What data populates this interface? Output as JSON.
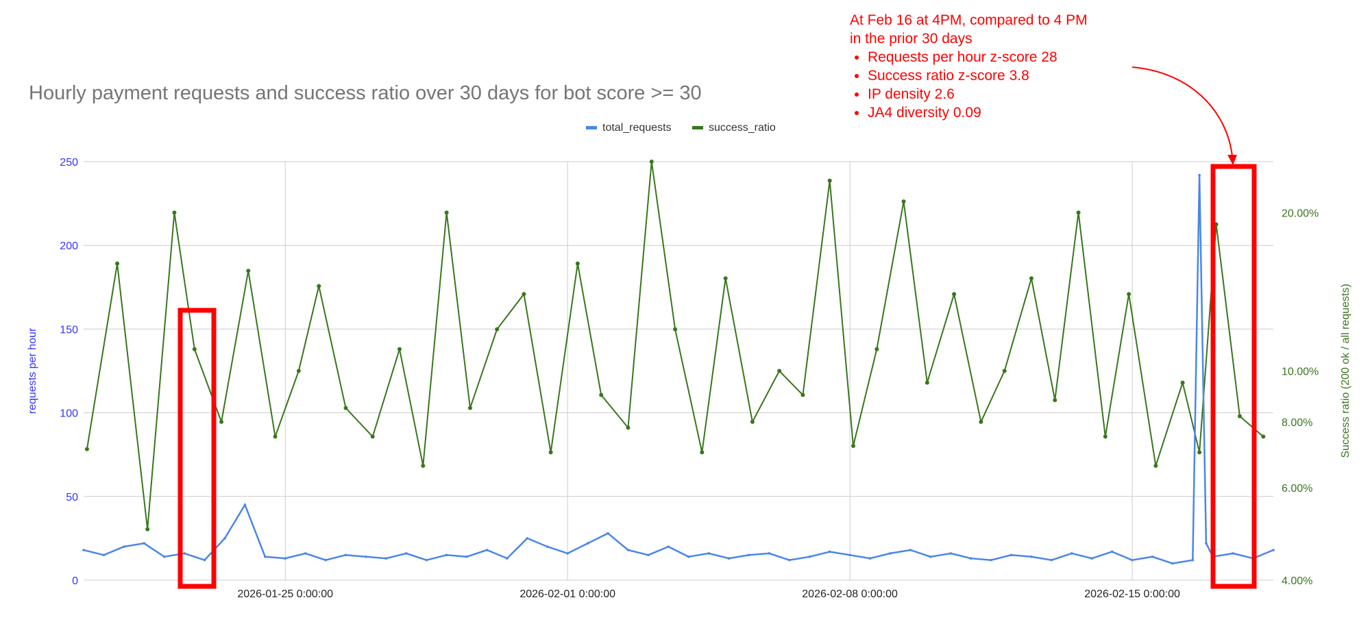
{
  "title": "Hourly payment requests and success ratio over 30 days for bot score >= 30",
  "annotation": {
    "heading": "At Feb 16 at 4PM, compared to 4 PM",
    "subheading": "in the prior 30 days",
    "bullets": [
      "Requests per hour z-score 28",
      "Success ratio z-score 3.8",
      "IP density 2.6",
      "JA4 diversity 0.09"
    ]
  },
  "colors": {
    "requests": "#4a86e8",
    "success": "#38761d",
    "highlight": "#ff0000",
    "left_axis_text": "#3333ff",
    "right_axis_text": "#38761d",
    "grid": "#cccccc"
  },
  "chart_data": {
    "type": "line",
    "x_label_ticks": [
      "2026-01-25 0:00:00",
      "2026-02-01 0:00:00",
      "2026-02-08 0:00:00",
      "2026-02-15 0:00:00"
    ],
    "x_start": "2026-01-20 0:00:00",
    "x_end": "2026-02-18 12:00:00",
    "left_axis": {
      "label": "requests per hour",
      "ylim": [
        0,
        250
      ],
      "ticks": [
        0,
        50,
        100,
        150,
        200,
        250
      ]
    },
    "right_axis": {
      "label": "Success ratio (200 ok / all requests)",
      "scale": "log",
      "ylim": [
        0.04,
        0.25
      ],
      "ticks": [
        "4.00%",
        "6.00%",
        "8.00%",
        "10.00%",
        "20.00%"
      ],
      "tick_values": [
        0.04,
        0.06,
        0.08,
        0.1,
        0.2
      ]
    },
    "legend": {
      "position": "top-center"
    },
    "grid": true,
    "series": [
      {
        "name": "total_requests",
        "axis": "left",
        "x": [
          "2026-01-20 0:00:00",
          "2026-01-20 12:00:00",
          "2026-01-21 0:00:00",
          "2026-01-21 12:00:00",
          "2026-01-22 0:00:00",
          "2026-01-22 12:00:00",
          "2026-01-23 0:00:00",
          "2026-01-23 12:00:00",
          "2026-01-24 0:00:00",
          "2026-01-24 12:00:00",
          "2026-01-25 0:00:00",
          "2026-01-25 12:00:00",
          "2026-01-26 0:00:00",
          "2026-01-26 12:00:00",
          "2026-01-27 0:00:00",
          "2026-01-27 12:00:00",
          "2026-01-28 0:00:00",
          "2026-01-28 12:00:00",
          "2026-01-29 0:00:00",
          "2026-01-29 12:00:00",
          "2026-01-30 0:00:00",
          "2026-01-30 12:00:00",
          "2026-01-31 0:00:00",
          "2026-01-31 12:00:00",
          "2026-02-01 0:00:00",
          "2026-02-01 12:00:00",
          "2026-02-02 0:00:00",
          "2026-02-02 12:00:00",
          "2026-02-03 0:00:00",
          "2026-02-03 12:00:00",
          "2026-02-04 0:00:00",
          "2026-02-04 12:00:00",
          "2026-02-05 0:00:00",
          "2026-02-05 12:00:00",
          "2026-02-06 0:00:00",
          "2026-02-06 12:00:00",
          "2026-02-07 0:00:00",
          "2026-02-07 12:00:00",
          "2026-02-08 0:00:00",
          "2026-02-08 12:00:00",
          "2026-02-09 0:00:00",
          "2026-02-09 12:00:00",
          "2026-02-10 0:00:00",
          "2026-02-10 12:00:00",
          "2026-02-11 0:00:00",
          "2026-02-11 12:00:00",
          "2026-02-12 0:00:00",
          "2026-02-12 12:00:00",
          "2026-02-13 0:00:00",
          "2026-02-13 12:00:00",
          "2026-02-14 0:00:00",
          "2026-02-14 12:00:00",
          "2026-02-15 0:00:00",
          "2026-02-15 12:00:00",
          "2026-02-16 0:00:00",
          "2026-02-16 12:00:00",
          "2026-02-16 16:00:00",
          "2026-02-16 20:00:00",
          "2026-02-17 0:00:00",
          "2026-02-17 12:00:00",
          "2026-02-18 0:00:00",
          "2026-02-18 12:00:00"
        ],
        "values": [
          18,
          15,
          20,
          22,
          14,
          16,
          12,
          25,
          45,
          14,
          13,
          16,
          12,
          15,
          14,
          13,
          16,
          12,
          15,
          14,
          18,
          13,
          25,
          20,
          16,
          22,
          28,
          18,
          15,
          20,
          14,
          16,
          13,
          15,
          16,
          12,
          14,
          17,
          15,
          13,
          16,
          18,
          14,
          16,
          13,
          12,
          15,
          14,
          12,
          16,
          13,
          17,
          12,
          14,
          10,
          12,
          242,
          22,
          14,
          16,
          13,
          18
        ]
      },
      {
        "name": "success_ratio",
        "axis": "right",
        "x": [
          "2026-01-20 2:00:00",
          "2026-01-20 20:00:00",
          "2026-01-21 14:00:00",
          "2026-01-22 6:00:00",
          "2026-01-22 18:00:00",
          "2026-01-23 10:00:00",
          "2026-01-24 2:00:00",
          "2026-01-24 18:00:00",
          "2026-01-25 8:00:00",
          "2026-01-25 20:00:00",
          "2026-01-26 12:00:00",
          "2026-01-27 4:00:00",
          "2026-01-27 20:00:00",
          "2026-01-28 10:00:00",
          "2026-01-29 0:00:00",
          "2026-01-29 14:00:00",
          "2026-01-30 6:00:00",
          "2026-01-30 22:00:00",
          "2026-01-31 14:00:00",
          "2026-02-01 6:00:00",
          "2026-02-01 20:00:00",
          "2026-02-02 12:00:00",
          "2026-02-03 2:00:00",
          "2026-02-03 16:00:00",
          "2026-02-04 8:00:00",
          "2026-02-04 22:00:00",
          "2026-02-05 14:00:00",
          "2026-02-06 6:00:00",
          "2026-02-06 20:00:00",
          "2026-02-07 12:00:00",
          "2026-02-08 2:00:00",
          "2026-02-08 16:00:00",
          "2026-02-09 8:00:00",
          "2026-02-09 22:00:00",
          "2026-02-10 14:00:00",
          "2026-02-11 6:00:00",
          "2026-02-11 20:00:00",
          "2026-02-12 12:00:00",
          "2026-02-13 2:00:00",
          "2026-02-13 16:00:00",
          "2026-02-14 8:00:00",
          "2026-02-14 22:00:00",
          "2026-02-15 14:00:00",
          "2026-02-16 6:00:00",
          "2026-02-16 16:00:00",
          "2026-02-17 2:00:00",
          "2026-02-17 16:00:00",
          "2026-02-18 6:00:00"
        ],
        "values": [
          0.071,
          0.16,
          0.05,
          0.2,
          0.11,
          0.08,
          0.155,
          0.075,
          0.1,
          0.145,
          0.085,
          0.075,
          0.11,
          0.066,
          0.2,
          0.085,
          0.12,
          0.14,
          0.07,
          0.16,
          0.09,
          0.078,
          0.25,
          0.12,
          0.07,
          0.15,
          0.08,
          0.1,
          0.09,
          0.23,
          0.072,
          0.11,
          0.21,
          0.095,
          0.14,
          0.08,
          0.1,
          0.15,
          0.088,
          0.2,
          0.075,
          0.14,
          0.066,
          0.095,
          0.07,
          0.19,
          0.082,
          0.075
        ]
      }
    ]
  }
}
